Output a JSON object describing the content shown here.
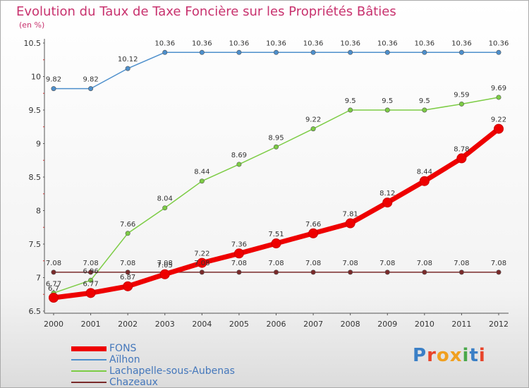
{
  "title": "Evolution du Taux de Taxe Foncière sur les Propriétés Bâties",
  "subtitle": "(en %)",
  "logo": {
    "text": "Proxiti",
    "colors": [
      "#3a7fc6",
      "#e8442a",
      "#f0a020",
      "#f0a020",
      "#49a84a",
      "#3a7fc6",
      "#e8442a"
    ]
  },
  "chart_data": {
    "type": "line",
    "x": [
      "2000",
      "2001",
      "2002",
      "2003",
      "2004",
      "2005",
      "2006",
      "2007",
      "2008",
      "2009",
      "2010",
      "2011",
      "2012"
    ],
    "ylim": [
      6.5,
      10.5
    ],
    "yticks": [
      "6.5",
      "7",
      "7.5",
      "8",
      "8.5",
      "9",
      "9.5",
      "10",
      "10.5"
    ],
    "grid": false,
    "legend_position": "bottom-left",
    "series": [
      {
        "name": "FONS",
        "color": "#ee0000",
        "values": [
          6.7,
          6.77,
          6.87,
          7.05,
          7.22,
          7.36,
          7.51,
          7.66,
          7.81,
          8.12,
          8.44,
          8.78,
          9.22
        ],
        "labels": [
          "6.7",
          "6.77",
          "6.87",
          "7.05",
          "7.22",
          "7.36",
          "7.51",
          "7.66",
          "7.81",
          "8.12",
          "8.44",
          "8.78",
          "9.22"
        ]
      },
      {
        "name": "Aïlhon",
        "color": "#4d8fcc",
        "values": [
          9.82,
          9.82,
          10.12,
          10.36,
          10.36,
          10.36,
          10.36,
          10.36,
          10.36,
          10.36,
          10.36,
          10.36,
          10.36
        ],
        "labels": [
          "9.82",
          "9.82",
          "10.12",
          "10.36",
          "10.36",
          "10.36",
          "10.36",
          "10.36",
          "10.36",
          "10.36",
          "10.36",
          "10.36",
          "10.36"
        ]
      },
      {
        "name": "Lachapelle-sous-Aubenas",
        "color": "#7ccc44",
        "values": [
          6.77,
          6.96,
          7.66,
          8.04,
          8.44,
          8.69,
          8.95,
          9.22,
          9.5,
          9.5,
          9.5,
          9.59,
          9.69
        ],
        "labels": [
          "6.77",
          "6.96",
          "7.66",
          "8.04",
          "8.44",
          "8.69",
          "8.95",
          "9.22",
          "9.5",
          "9.5",
          "9.5",
          "9.59",
          "9.69"
        ]
      },
      {
        "name": "Chazeaux",
        "color": "#7a2a2a",
        "values": [
          7.08,
          7.08,
          7.08,
          7.08,
          7.08,
          7.08,
          7.08,
          7.08,
          7.08,
          7.08,
          7.08,
          7.08,
          7.08
        ],
        "labels": [
          "7.08",
          "7.08",
          "7.08",
          "7.08",
          "7.08",
          "7.08",
          "7.08",
          "7.08",
          "7.08",
          "7.08",
          "7.08",
          "7.08",
          "7.08"
        ]
      }
    ]
  }
}
